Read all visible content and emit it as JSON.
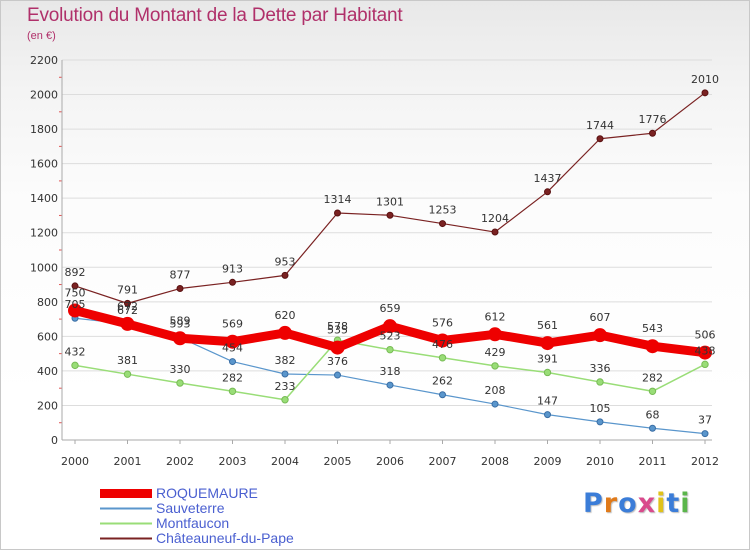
{
  "header": {
    "title": "Evolution du Montant de la Dette par Habitant",
    "subtitle": "(en €)"
  },
  "logo": {
    "text": "Proxiti",
    "colors": [
      "#3b7dd8",
      "#e07a1a",
      "#3b7dd8",
      "#d94a8c",
      "#e0c21a",
      "#3b7dd8",
      "#5ab54a"
    ]
  },
  "colors": {
    "title": "#b0306a",
    "legend_text": "#4a5fd0",
    "grid": "#dddddd",
    "axis": "#aaaaaa"
  },
  "chart_data": {
    "type": "line",
    "title": "Evolution du Montant de la Dette par Habitant",
    "subtitle": "(en €)",
    "xlabel": "",
    "ylabel": "",
    "x": [
      "2000",
      "2001",
      "2002",
      "2003",
      "2004",
      "2005",
      "2006",
      "2007",
      "2008",
      "2009",
      "2010",
      "2011",
      "2012"
    ],
    "y_ticks": [
      "0",
      "200",
      "400",
      "600",
      "800",
      "1000",
      "1200",
      "1400",
      "1600",
      "1800",
      "2000",
      "2200"
    ],
    "ylim": [
      0,
      2200
    ],
    "grid": "horizontal",
    "legend_position": "bottom-left",
    "series": [
      {
        "name": "ROQUEMAURE",
        "color": "#ee0000",
        "values": [
          750,
          672,
          589,
          569,
          620,
          535,
          659,
          576,
          612,
          561,
          607,
          543,
          506
        ],
        "labels": [
          "750",
          "672",
          "589",
          "569",
          "620",
          "535",
          "659",
          "576",
          "612",
          "561",
          "607",
          "543",
          "506"
        ]
      },
      {
        "name": "Sauveterre",
        "color": "#5a96cc",
        "values": [
          705,
          672,
          593,
          454,
          382,
          376,
          318,
          262,
          208,
          147,
          105,
          68,
          37
        ],
        "labels": [
          "705",
          "672",
          "593",
          "454",
          "382",
          "376",
          "318",
          "262",
          "208",
          "147",
          "105",
          "68",
          "37"
        ]
      },
      {
        "name": "Montfaucon",
        "color": "#99dd77",
        "values": [
          432,
          381,
          330,
          282,
          233,
          578,
          523,
          476,
          429,
          391,
          336,
          282,
          438
        ],
        "labels": [
          "432",
          "381",
          "330",
          "282",
          "233",
          "578",
          "523",
          "476",
          "429",
          "391",
          "336",
          "282",
          "438"
        ]
      },
      {
        "name": "Châteauneuf-du-Pape",
        "color": "#7a2222",
        "values": [
          892,
          791,
          877,
          913,
          953,
          1314,
          1301,
          1253,
          1204,
          1437,
          1744,
          1776,
          2010
        ],
        "labels": [
          "892",
          "791",
          "877",
          "913",
          "953",
          "1314",
          "1301",
          "1253",
          "1204",
          "1437",
          "1744",
          "1776",
          "2010"
        ]
      }
    ]
  }
}
